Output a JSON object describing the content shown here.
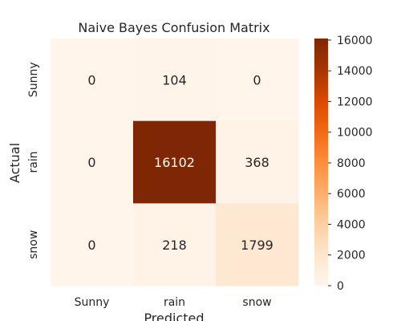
{
  "chart_data": {
    "type": "heatmap",
    "title": "Naive Bayes Confusion Matrix",
    "xlabel": "Predicted",
    "ylabel": "Actual",
    "x_categories": [
      "Sunny",
      "rain",
      "snow"
    ],
    "y_categories": [
      "Sunny",
      "rain",
      "snow"
    ],
    "values": [
      [
        0,
        104,
        0
      ],
      [
        0,
        16102,
        368
      ],
      [
        0,
        218,
        1799
      ]
    ],
    "colormap": "Oranges",
    "colorbar": {
      "min": 0,
      "max": 16102,
      "ticks": [
        0,
        2000,
        4000,
        6000,
        8000,
        10000,
        12000,
        14000,
        16000
      ]
    }
  }
}
